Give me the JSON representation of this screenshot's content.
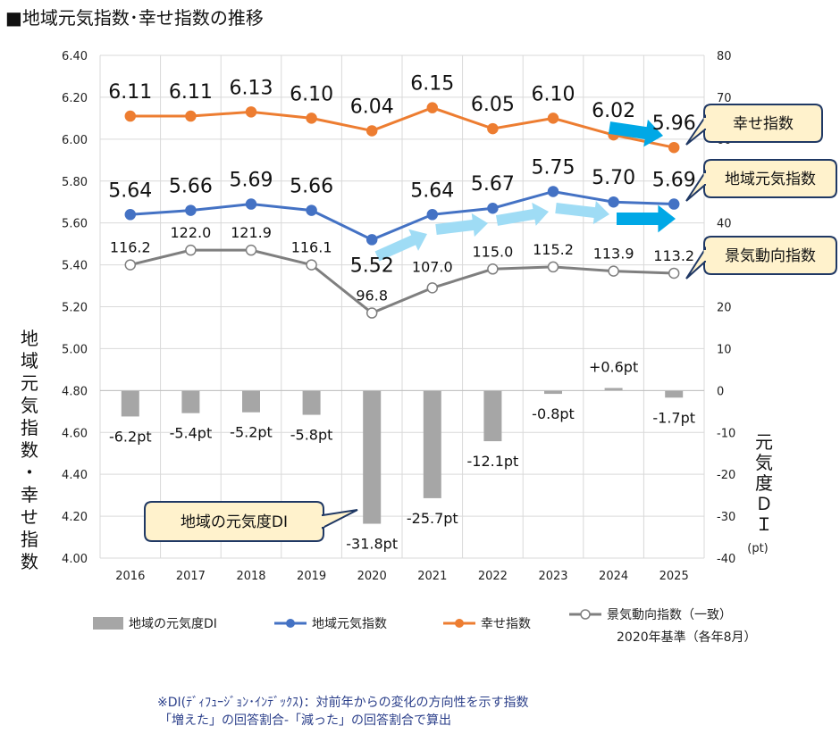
{
  "title": "■地域元気指数･幸せ指数の推移",
  "left_axis_title": "地域元気指数・幸せ指数",
  "right_axis_title": "元気度ＤＩ",
  "right_axis_unit": "(pt)",
  "callouts": {
    "happiness": "幸せ指数",
    "genki": "地域元気指数",
    "keiki": "景気動向指数",
    "di": "地域の元気度DI"
  },
  "legend": {
    "di": "地域の元気度DI",
    "genki": "地域元気指数",
    "happiness": "幸せ指数",
    "keiki": "景気動向指数（一致）",
    "keiki_note": "2020年基準（各年8月）"
  },
  "footnote_1": "※DI(ﾃﾞｨﾌｭｰｼﾞｮﾝ･ｲﾝﾃﾞｯｸｽ)：対前年からの変化の方向性を示す指数",
  "footnote_2": "「増えた」の回答割合-「減った」の回答割合で算出",
  "colors": {
    "happiness": "#ed7d31",
    "genki": "#4472c4",
    "keiki": "#7f7f7f",
    "di_bar": "#a6a6a6",
    "arrow_light": "#9fdcf5",
    "arrow_dark": "#00a8e6",
    "callout_fill": "#fff2cc",
    "callout_border": "#1f3864"
  },
  "chart_data": {
    "type": "bar+line",
    "categories": [
      "2016",
      "2017",
      "2018",
      "2019",
      "2020",
      "2021",
      "2022",
      "2023",
      "2024",
      "2025"
    ],
    "left_axis": {
      "ylim": [
        4.0,
        6.4
      ],
      "ticks": [
        "4.00",
        "4.20",
        "4.40",
        "4.60",
        "4.80",
        "5.00",
        "5.20",
        "5.40",
        "5.60",
        "5.80",
        "6.00",
        "6.20",
        "6.40"
      ]
    },
    "right_axis": {
      "ylim": [
        -40,
        80
      ],
      "ticks": [
        "-40",
        "-30",
        "-20",
        "-10",
        "0",
        "10",
        "20",
        "30",
        "40",
        "50",
        "60",
        "70",
        "80"
      ]
    },
    "series": [
      {
        "key": "happiness",
        "name": "幸せ指数",
        "axis": "left",
        "type": "line",
        "values": [
          6.11,
          6.11,
          6.13,
          6.1,
          6.04,
          6.15,
          6.05,
          6.1,
          6.02,
          5.96
        ],
        "labels": [
          "6.11",
          "6.11",
          "6.13",
          "6.10",
          "6.04",
          "6.15",
          "6.05",
          "6.10",
          "6.02",
          "5.96"
        ]
      },
      {
        "key": "genki",
        "name": "地域元気指数",
        "axis": "left",
        "type": "line",
        "values": [
          5.64,
          5.66,
          5.69,
          5.66,
          5.52,
          5.64,
          5.67,
          5.75,
          5.7,
          5.69
        ],
        "labels": [
          "5.64",
          "5.66",
          "5.69",
          "5.66",
          "5.52",
          "5.64",
          "5.67",
          "5.75",
          "5.70",
          "5.69"
        ]
      },
      {
        "key": "keiki",
        "name": "景気動向指数（一致）",
        "axis": "left",
        "type": "line",
        "values": [
          5.4,
          5.47,
          5.47,
          5.4,
          5.17,
          5.29,
          5.38,
          5.39,
          5.37,
          5.36
        ],
        "labels": [
          "116.2",
          "122.0",
          "121.9",
          "116.1",
          "96.8",
          "107.0",
          "115.0",
          "115.2",
          "113.9",
          "113.2"
        ]
      },
      {
        "key": "di",
        "name": "地域の元気度DI",
        "axis": "right",
        "type": "bar",
        "values": [
          -6.2,
          -5.4,
          -5.2,
          -5.8,
          -31.8,
          -25.7,
          -12.1,
          -0.8,
          0.6,
          -1.7
        ],
        "labels": [
          "-6.2pt",
          "-5.4pt",
          "-5.2pt",
          "-5.8pt",
          "-31.8pt",
          "-25.7pt",
          "-12.1pt",
          "-0.8pt",
          "+0.6pt",
          "-1.7pt"
        ]
      }
    ]
  }
}
